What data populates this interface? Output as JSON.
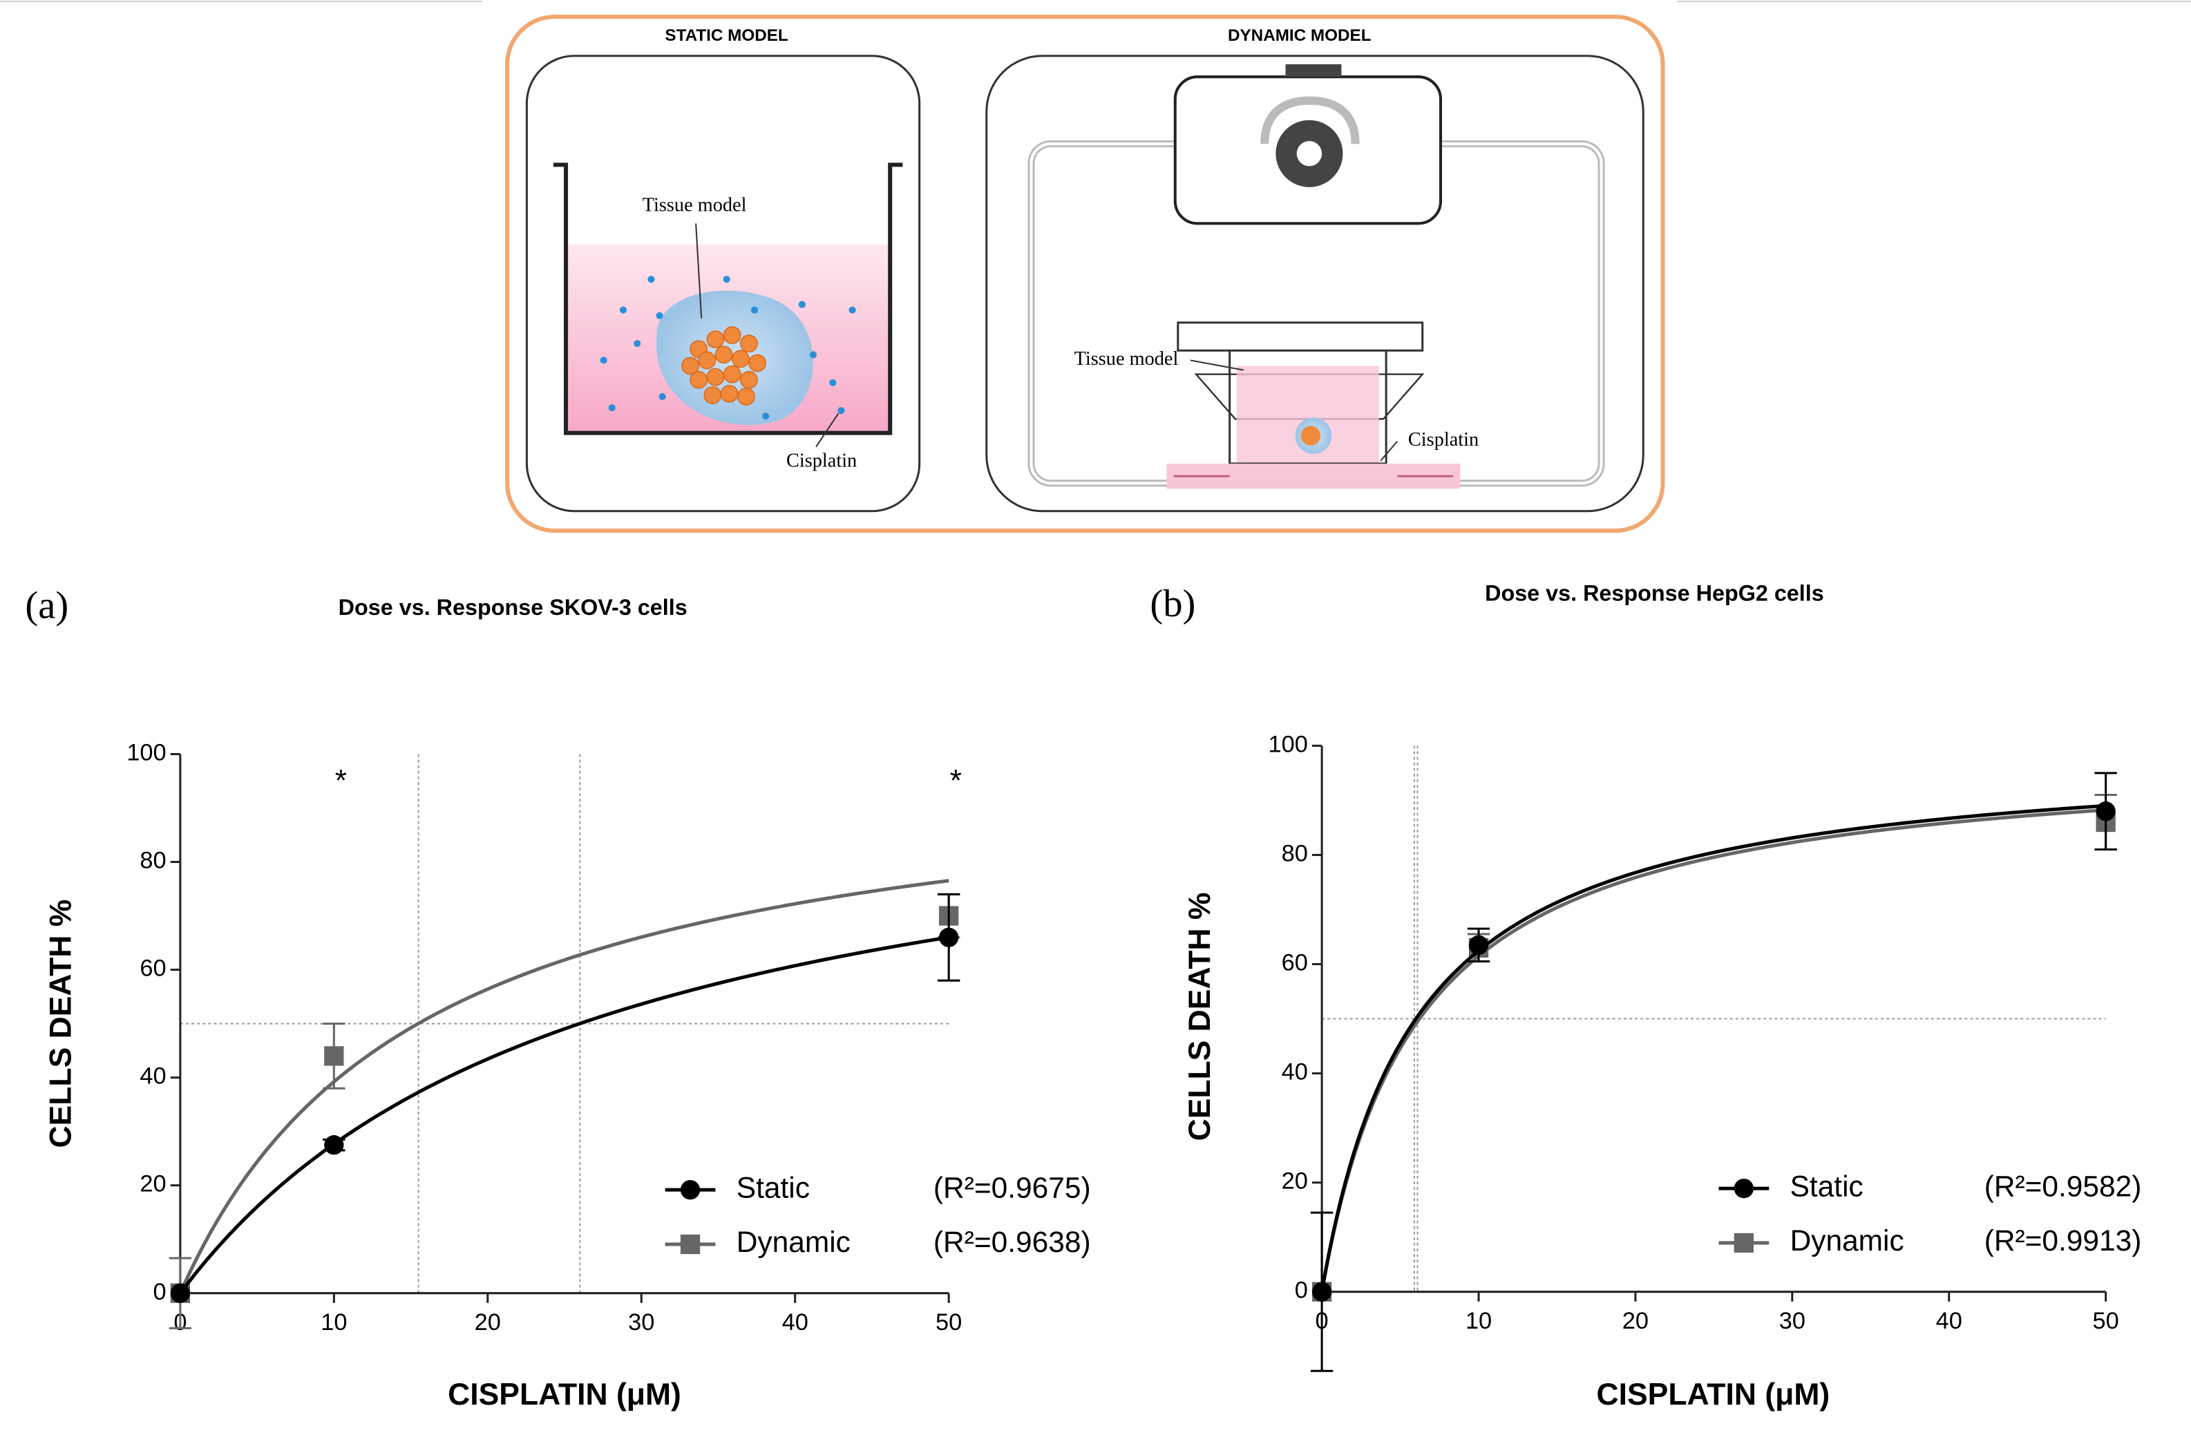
{
  "diagram": {
    "static_label": "STATIC MODEL",
    "dynamic_label": "DYNAMIC MODEL",
    "static_tissue": "Tissue model",
    "static_cisplatin": "Cisplatin",
    "dynamic_tissue": "Tissue model",
    "dynamic_cisplatin": "Cisplatin"
  },
  "chart_data": [
    {
      "type": "scatter",
      "panel": "(a)",
      "title": "Dose vs. Response SKOV-3 cells",
      "x_label": "CISPLATIN (μM)",
      "y_label": "CELLS DEATH %",
      "xlim": [
        0,
        50
      ],
      "ylim": [
        0,
        100
      ],
      "xticks": [
        0,
        10,
        20,
        30,
        40,
        50
      ],
      "yticks": [
        0,
        20,
        40,
        60,
        80,
        100
      ],
      "x": [
        0,
        10,
        50
      ],
      "series": [
        {
          "name": "Dynamic",
          "color": "#666666",
          "marker": "square",
          "values": [
            0,
            44,
            70
          ],
          "errors": [
            6.5,
            6,
            4
          ],
          "fit_top": 100.4,
          "fit_ec50": 15.6,
          "r2_label": "(R²=0.9638)"
        },
        {
          "name": "Static",
          "color": "#000000",
          "marker": "circle",
          "values": [
            0,
            27.5,
            66
          ],
          "errors": [
            null,
            1,
            8
          ],
          "fit_top": 101,
          "fit_ec50": 26.5,
          "r2_label": "(R²=0.9675)"
        }
      ],
      "reference_lines": {
        "x": [
          15.5,
          26
        ],
        "y": [
          50
        ]
      },
      "annotations": [
        {
          "text": "*",
          "x": 10,
          "y": 96
        },
        {
          "text": "*",
          "x": 50,
          "y": 96
        }
      ]
    },
    {
      "type": "scatter",
      "panel": "(b)",
      "title": "Dose vs. Response HepG2 cells",
      "x_label": "CISPLATIN (μM)",
      "y_label": "CELLS DEATH %",
      "xlim": [
        0,
        50
      ],
      "ylim": [
        0,
        100
      ],
      "xticks": [
        0,
        10,
        20,
        30,
        40,
        50
      ],
      "yticks": [
        0,
        20,
        40,
        60,
        80,
        100
      ],
      "x": [
        0,
        10,
        50
      ],
      "series": [
        {
          "name": "Dynamic",
          "color": "#666666",
          "marker": "square",
          "values": [
            0,
            63,
            86
          ],
          "errors": [
            null,
            2.5,
            5
          ],
          "fit_top": 99,
          "fit_ec50": 6.1,
          "r2_label": "(R²=0.9913)"
        },
        {
          "name": "Static",
          "color": "#000000",
          "marker": "circle",
          "values": [
            0,
            63.5,
            88
          ],
          "errors": [
            14.5,
            3,
            7
          ],
          "fit_top": 99.6,
          "fit_ec50": 5.95,
          "r2_label": "(R²=0.9582)"
        }
      ],
      "reference_lines": {
        "x": [
          5.9,
          6.1
        ],
        "y": [
          50
        ]
      },
      "annotations": []
    }
  ]
}
